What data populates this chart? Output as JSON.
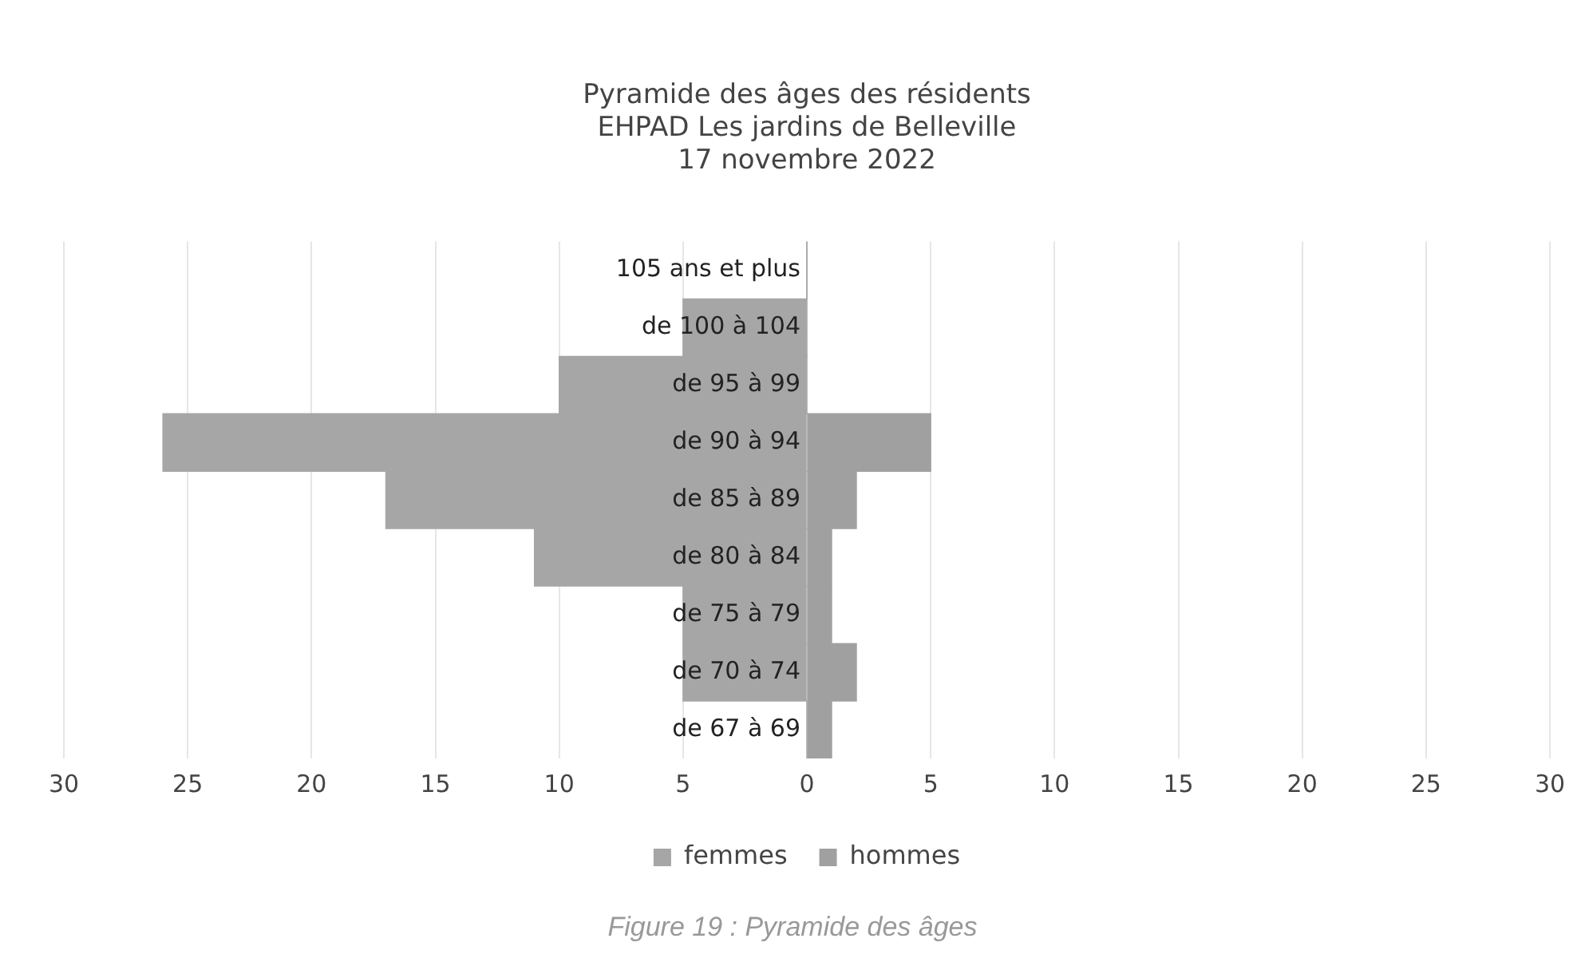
{
  "chart_data": {
    "type": "bar",
    "orientation": "horizontal",
    "stacked": true,
    "title": "Pyramide des âges des résidents\nEHPAD Les jardins de Belleville\n17 novembre 2022",
    "categories": [
      "105 ans et plus",
      "de 100 à 104",
      "de 95 à 99",
      "de 90 à 94",
      "de 85 à 89",
      "de 80 à 84",
      "de 75 à 79",
      "de 70 à 74",
      "de 67 à 69"
    ],
    "series": [
      {
        "name": "femmes",
        "color": "#a6a6a6",
        "values": [
          0,
          -5,
          -10,
          -26,
          -17,
          -11,
          -5,
          -5,
          0
        ]
      },
      {
        "name": "hommes",
        "color": "#a0a0a0",
        "values": [
          0,
          0,
          0,
          5,
          2,
          1,
          1,
          2,
          1
        ]
      }
    ],
    "xlim": [
      -30,
      30
    ],
    "xticks": [
      {
        "value": -30,
        "label": "30"
      },
      {
        "value": -25,
        "label": "25"
      },
      {
        "value": -20,
        "label": "20"
      },
      {
        "value": -15,
        "label": "15"
      },
      {
        "value": -10,
        "label": "10"
      },
      {
        "value": -5,
        "label": "5"
      },
      0,
      5,
      10,
      15,
      20,
      25,
      30
    ],
    "grid": "x",
    "legend": "bottom",
    "annotations": [
      "Figure 19 : Pyramide des âges"
    ]
  }
}
